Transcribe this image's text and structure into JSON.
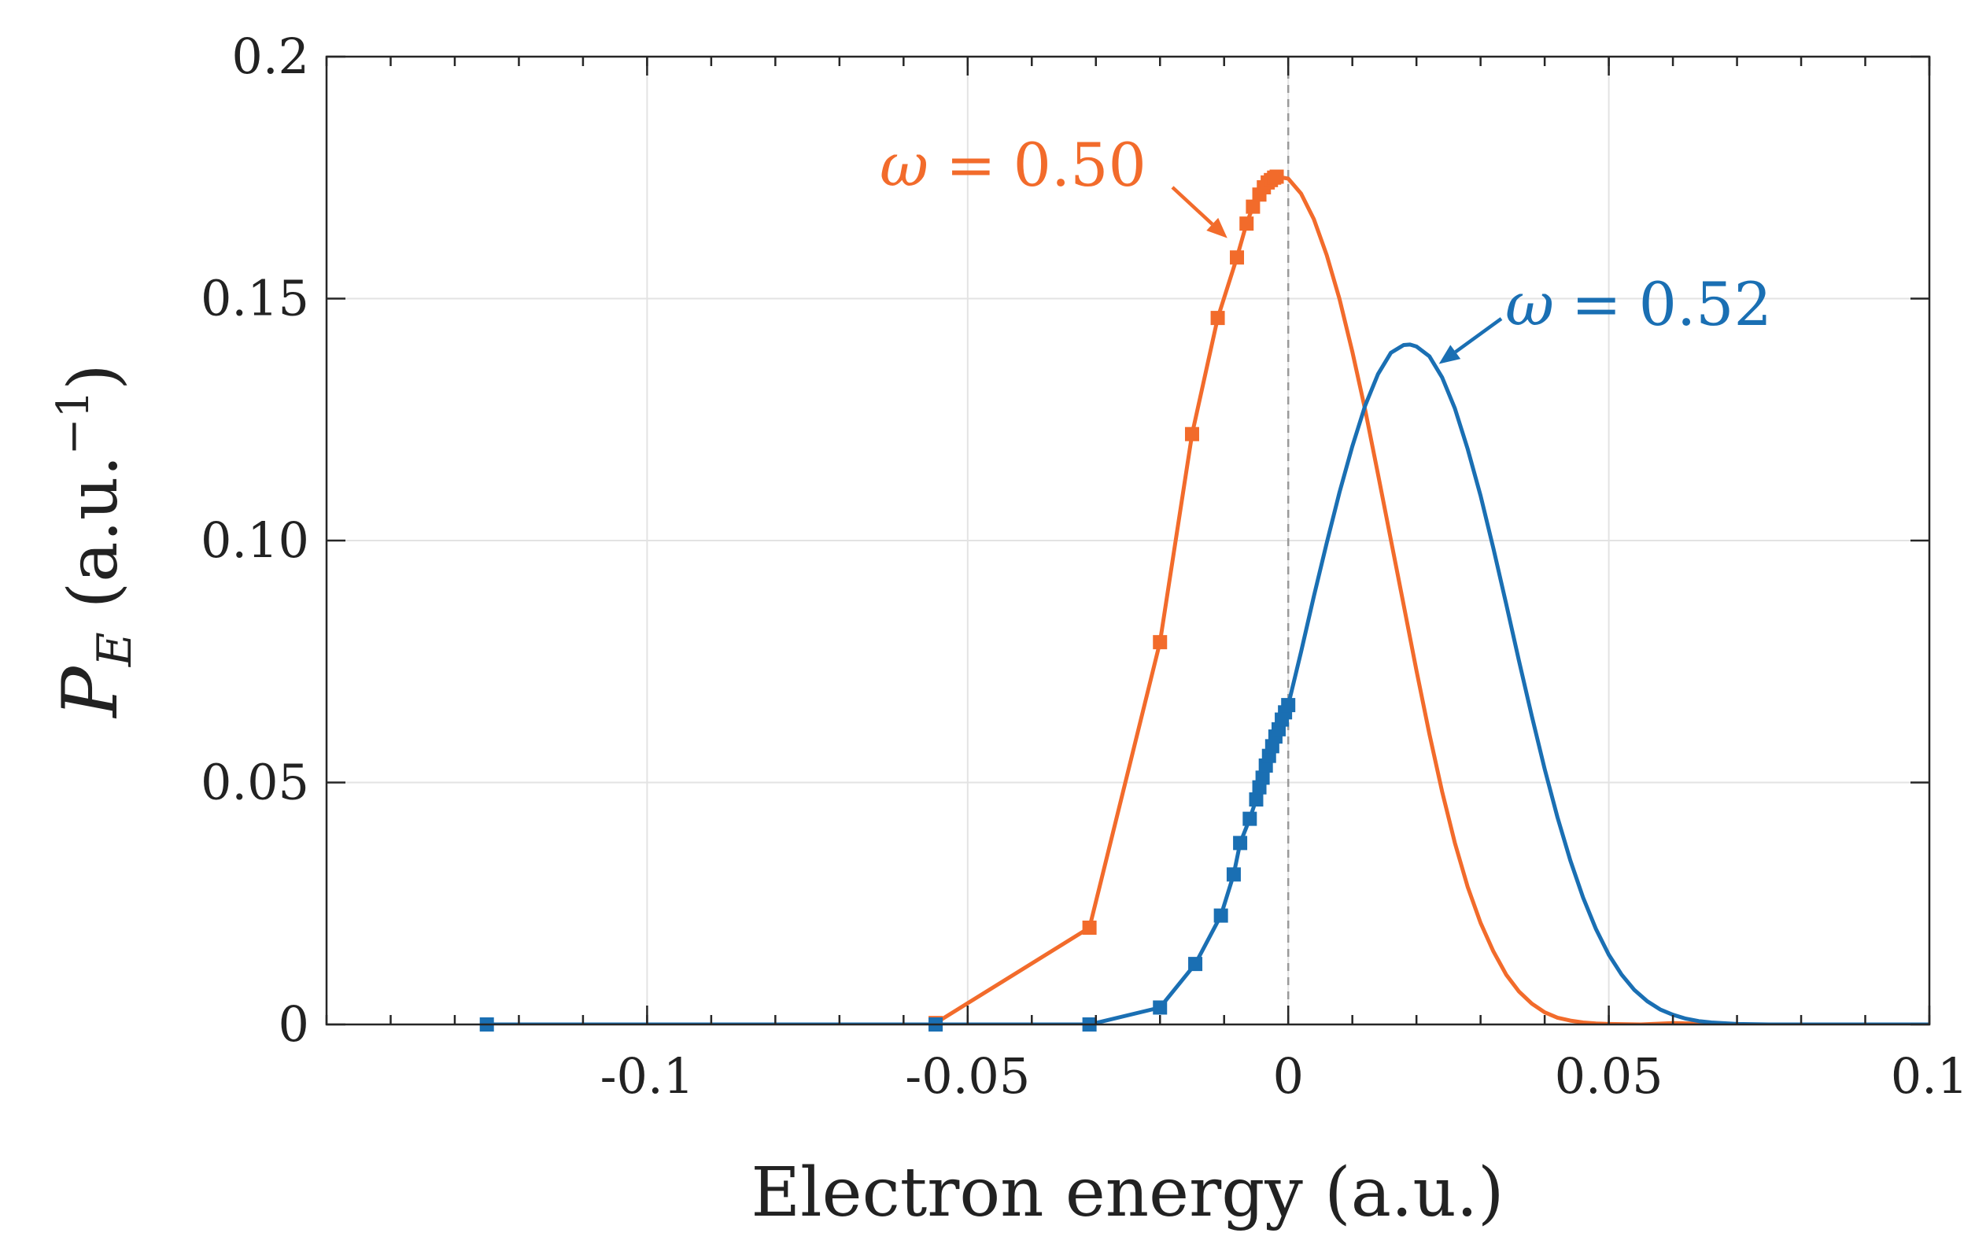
{
  "colors": {
    "orange": "#F26B2B",
    "blue": "#1A6FB3",
    "grid": "#E3E3E3",
    "axis": "#262626",
    "zero_line": "#9A9A9A"
  },
  "chart_data": {
    "type": "line",
    "title": "",
    "xlabel": "Electron energy (a.u.)",
    "ylabel_main": "P",
    "ylabel_sub": "E",
    "ylabel_unit": "(a.u.",
    "ylabel_exp": "−1",
    "ylabel_close": ")",
    "xlim": [
      -0.15,
      0.1
    ],
    "ylim": [
      0,
      0.2
    ],
    "grid": true,
    "x_ticks": [
      {
        "value": -0.1,
        "label": "-0.1"
      },
      {
        "value": -0.05,
        "label": "-0.05"
      },
      {
        "value": 0,
        "label": "0"
      },
      {
        "value": 0.05,
        "label": "0.05"
      },
      {
        "value": 0.1,
        "label": "0.1"
      }
    ],
    "y_ticks": [
      {
        "value": 0,
        "label": "0"
      },
      {
        "value": 0.05,
        "label": "0.05"
      },
      {
        "value": 0.1,
        "label": "0.10"
      },
      {
        "value": 0.15,
        "label": "0.15"
      },
      {
        "value": 0.2,
        "label": "0.2"
      }
    ],
    "x_minor_tick_step": 0.01,
    "vertical_reference_line": 0,
    "series": [
      {
        "name": "omega_050",
        "label_prefix": "ω",
        "label_equals": "=",
        "label_value": "0.50",
        "color_key": "orange",
        "markers": {
          "x": [
            -0.055,
            -0.031,
            -0.02,
            -0.015,
            -0.011,
            -0.008,
            -0.0065,
            -0.0055,
            -0.0045,
            -0.0038,
            -0.0032,
            -0.0027,
            -0.0022,
            -0.0018
          ],
          "y": [
            0.0003,
            0.02,
            0.079,
            0.122,
            0.146,
            0.1585,
            0.1655,
            0.169,
            0.1715,
            0.173,
            0.174,
            0.1745,
            0.175,
            0.1752
          ]
        },
        "curve": {
          "x": [
            -0.0018,
            0.0,
            0.002,
            0.004,
            0.006,
            0.008,
            0.01,
            0.012,
            0.014,
            0.016,
            0.018,
            0.02,
            0.022,
            0.024,
            0.026,
            0.028,
            0.03,
            0.032,
            0.034,
            0.036,
            0.038,
            0.04,
            0.042,
            0.044,
            0.046,
            0.048,
            0.05,
            0.055,
            0.06,
            0.07,
            0.08,
            0.1
          ],
          "y": [
            0.1752,
            0.1748,
            0.1717,
            0.1664,
            0.159,
            0.1499,
            0.139,
            0.127,
            0.1137,
            0.1002,
            0.0867,
            0.0731,
            0.0601,
            0.0481,
            0.0375,
            0.0284,
            0.021,
            0.0151,
            0.0103,
            0.0068,
            0.0043,
            0.0025,
            0.0014,
            0.0008,
            0.0004,
            0.0002,
            0.0001,
            0.0,
            0.0003,
            0.0,
            0.0,
            0.0
          ]
        }
      },
      {
        "name": "omega_052",
        "label_prefix": "ω",
        "label_equals": "=",
        "label_value": "0.52",
        "color_key": "blue",
        "markers": {
          "x": [
            -0.125,
            -0.055,
            -0.031,
            -0.02,
            -0.0145,
            -0.0105,
            -0.0085,
            -0.0075,
            -0.006,
            -0.005,
            -0.0045,
            -0.004,
            -0.0035,
            -0.003,
            -0.0025,
            -0.002,
            -0.0015,
            -0.001,
            -0.0005,
            0.0
          ],
          "y": [
            0.0,
            0.0,
            0.0,
            0.0035,
            0.0125,
            0.0225,
            0.031,
            0.0375,
            0.0425,
            0.0465,
            0.049,
            0.051,
            0.0535,
            0.0555,
            0.0575,
            0.0595,
            0.061,
            0.063,
            0.0645,
            0.066
          ]
        },
        "curve": {
          "x": [
            0.0,
            0.002,
            0.004,
            0.006,
            0.008,
            0.01,
            0.012,
            0.014,
            0.016,
            0.018,
            0.019,
            0.02,
            0.022,
            0.024,
            0.026,
            0.028,
            0.03,
            0.032,
            0.034,
            0.036,
            0.038,
            0.04,
            0.042,
            0.044,
            0.046,
            0.048,
            0.05,
            0.052,
            0.054,
            0.056,
            0.058,
            0.06,
            0.062,
            0.064,
            0.066,
            0.07,
            0.075,
            0.08,
            0.09,
            0.1
          ],
          "y": [
            0.066,
            0.077,
            0.0885,
            0.0995,
            0.11,
            0.1195,
            0.1279,
            0.1344,
            0.1388,
            0.1404,
            0.1405,
            0.1401,
            0.1381,
            0.1337,
            0.1273,
            0.1189,
            0.1093,
            0.0984,
            0.0869,
            0.0751,
            0.0637,
            0.0528,
            0.0428,
            0.0339,
            0.0262,
            0.0197,
            0.0144,
            0.0103,
            0.0071,
            0.0048,
            0.0031,
            0.002,
            0.0012,
            0.0007,
            0.0004,
            0.0001,
            0.0,
            0.0,
            0.0,
            0.0
          ]
        }
      }
    ],
    "annotations": [
      {
        "series": "omega_050",
        "arrow_to": {
          "x": -0.0095,
          "y": 0.1625
        }
      },
      {
        "series": "omega_052",
        "arrow_to": {
          "x": 0.0235,
          "y": 0.1365
        }
      }
    ]
  }
}
